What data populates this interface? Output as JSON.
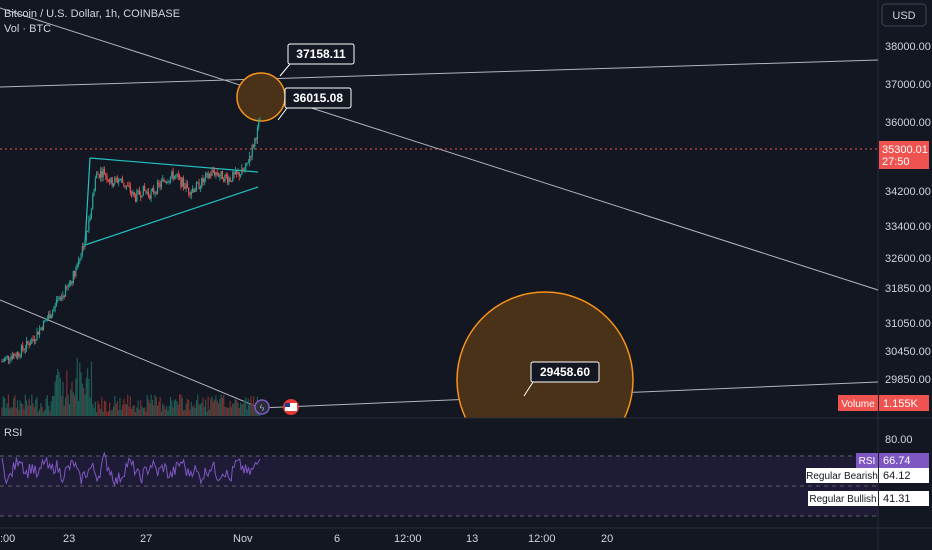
{
  "header": {
    "title": "Bitcoin / U.S. Dollar, 1h, COINBASE",
    "subtitle": "Vol · BTC",
    "currency": "USD"
  },
  "colors": {
    "background": "#131722",
    "up": "#26a69a",
    "down": "#ef5350",
    "trendline_white": "#b2b5be",
    "triangle": "#22c3c3",
    "circle_fill": "#4a3218",
    "circle_stroke": "#f7931a",
    "rsi_line": "#7e57c2",
    "rsi_band": "#1e1b36",
    "price_label": "#ef5350"
  },
  "chart_data": [
    {
      "type": "candlestick",
      "title": "Bitcoin / U.S. Dollar, 1h, COINBASE",
      "y_axis_ticks": [
        "38000.00",
        "37000.00",
        "36000.00",
        "34200.00",
        "33400.00",
        "32600.00",
        "31850.00",
        "31050.00",
        "30450.00",
        "29850.00"
      ],
      "x_axis_ticks": [
        ":00",
        "23",
        "27",
        "Nov",
        "6",
        "12:00",
        "13",
        "12:00",
        "20"
      ],
      "last_price": "35300.01",
      "countdown": "27:50",
      "annotations": [
        {
          "label": "37158.11",
          "icon": "circle"
        },
        {
          "label": "36015.08",
          "icon": "circle"
        },
        {
          "label": "29458.60",
          "icon": "circle"
        }
      ],
      "price_path": [
        [
          29700,
          29720
        ],
        [
          29850,
          29650
        ],
        [
          29900,
          29800
        ],
        [
          30100,
          30050
        ],
        [
          30300,
          30200
        ],
        [
          30600,
          30450
        ],
        [
          30900,
          30800
        ],
        [
          31200,
          31100
        ],
        [
          31500,
          31450
        ],
        [
          31900,
          31850
        ],
        [
          32500,
          32400
        ],
        [
          33200,
          33100
        ],
        [
          34600,
          34500
        ],
        [
          34700,
          34600
        ],
        [
          34400,
          34300
        ],
        [
          34500,
          34450
        ],
        [
          34300,
          34200
        ],
        [
          34000,
          33900
        ],
        [
          34200,
          34100
        ],
        [
          34100,
          34050
        ],
        [
          34300,
          34200
        ],
        [
          34500,
          34400
        ],
        [
          34600,
          34500
        ],
        [
          34400,
          34350
        ],
        [
          34200,
          34150
        ],
        [
          34300,
          34250
        ],
        [
          34500,
          34400
        ],
        [
          34700,
          34600
        ],
        [
          34600,
          34550
        ],
        [
          34500,
          34450
        ],
        [
          34600,
          34550
        ],
        [
          34700,
          34650
        ],
        [
          35300,
          35250
        ],
        [
          36015,
          35900
        ]
      ]
    },
    {
      "type": "bar",
      "title": "Vol · BTC",
      "value_label": "Volume",
      "value": "1.155K"
    },
    {
      "type": "line",
      "title": "RSI",
      "y_axis_ticks": [
        "80.00"
      ],
      "value": "66.74",
      "markers": [
        {
          "label": "Regular Bearish",
          "value": "64.12"
        },
        {
          "label": "Regular Bullish",
          "value": "41.31"
        }
      ],
      "series": [
        {
          "values": [
            62,
            45,
            58,
            70,
            52,
            60,
            48,
            66,
            55,
            61,
            50,
            57,
            63,
            46,
            53,
            59,
            49,
            68,
            56,
            44,
            51,
            64,
            58,
            47,
            55,
            62,
            53,
            60,
            49,
            57,
            65,
            52,
            58,
            48,
            54,
            61,
            50,
            56,
            46,
            63,
            59,
            52,
            57,
            66.74
          ]
        }
      ]
    }
  ]
}
